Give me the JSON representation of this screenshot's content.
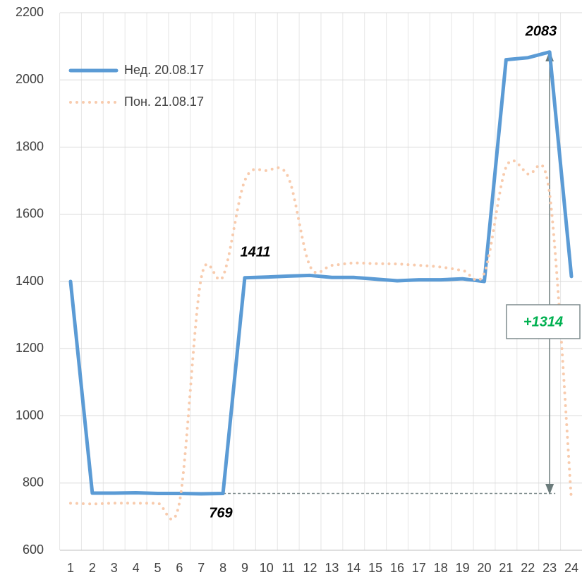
{
  "chart_data": {
    "type": "line",
    "categories": [
      "1",
      "2",
      "3",
      "4",
      "5",
      "6",
      "7",
      "8",
      "9",
      "10",
      "11",
      "12",
      "13",
      "14",
      "15",
      "16",
      "17",
      "18",
      "19",
      "20",
      "21",
      "22",
      "23",
      "24"
    ],
    "series": [
      {
        "name": "Нед. 20.08.17",
        "color": "#5b9bd5",
        "style": "solid",
        "values": [
          1400,
          770,
          770,
          771,
          769,
          769,
          768,
          769,
          1411,
          1413,
          1416,
          1418,
          1412,
          1412,
          1407,
          1402,
          1405,
          1405,
          1408,
          1400,
          2060,
          2066,
          2083,
          1415
        ]
      },
      {
        "name": "Пон. 21.08.17",
        "color": "#f8cbad",
        "style": "dotted",
        "values": [
          740,
          738,
          740,
          740,
          740,
          742,
          1410,
          1415,
          1700,
          1730,
          1710,
          1445,
          1448,
          1455,
          1453,
          1452,
          1448,
          1443,
          1433,
          1425,
          1740,
          1720,
          1660,
          750
        ]
      }
    ],
    "annotations": [
      "2083",
      "1411",
      "769",
      "+1314"
    ],
    "ylim": [
      600,
      2200
    ],
    "yticks": [
      600,
      800,
      1000,
      1200,
      1400,
      1600,
      1800,
      2000,
      2200
    ],
    "grid": true,
    "legend": "top-left"
  }
}
